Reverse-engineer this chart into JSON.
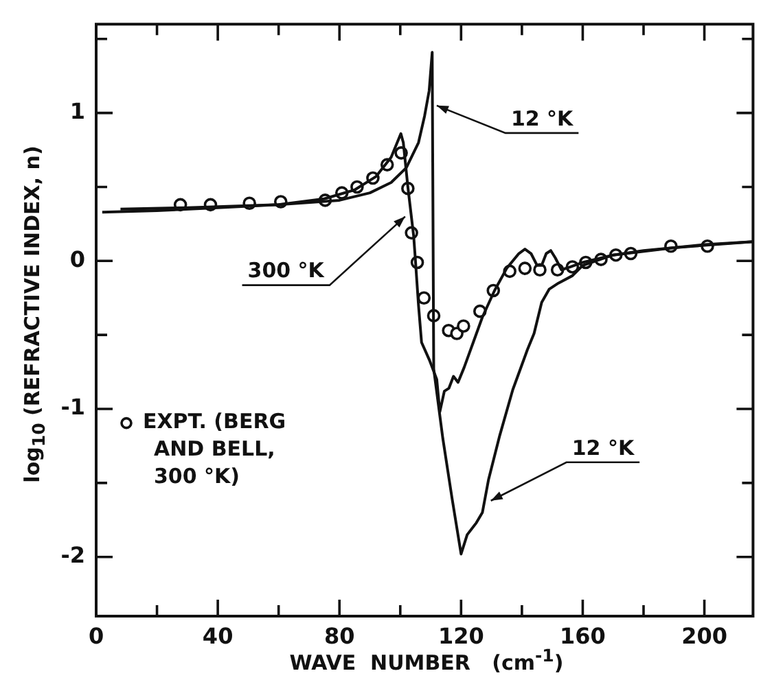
{
  "chart_data": {
    "type": "line",
    "xlabel": "WAVE  NUMBER   (cm$^{-1}$)",
    "ylabel": "log$_{10}$ (REFRACTIVE INDEX, n)",
    "xlim": [
      0,
      216
    ],
    "ylim": [
      -2.4,
      1.6
    ],
    "xticks": [
      0,
      {
        "value": 20,
        "label": null
      },
      40,
      {
        "value": 60,
        "label": null
      },
      80,
      {
        "value": 100,
        "label": null
      },
      120,
      {
        "value": 140,
        "label": null
      },
      160,
      {
        "value": 180,
        "label": null
      },
      200
    ],
    "yticks": [
      -2,
      {
        "value": -1.5,
        "label": null
      },
      -1,
      {
        "value": -0.5,
        "label": null
      },
      0,
      {
        "value": 0.5,
        "label": null
      },
      1,
      {
        "value": 1.5,
        "label": null
      }
    ],
    "legend": "left",
    "series": [
      {
        "color": "#111111",
        "x": [
          2,
          20,
          40,
          60,
          75,
          85,
          92,
          97,
          100.2,
          101,
          102.5,
          104.4,
          105,
          106,
          107,
          109.6,
          112,
          113,
          114.5,
          116,
          117.5,
          119,
          121,
          124,
          127,
          131,
          135,
          139,
          141,
          143,
          145,
          146.5,
          148,
          149.5,
          151,
          153,
          156,
          160,
          170,
          180,
          190,
          200,
          216
        ],
        "values": [
          0.33,
          0.34,
          0.36,
          0.38,
          0.42,
          0.48,
          0.57,
          0.7,
          0.86,
          0.8,
          0.5,
          0.17,
          0.0,
          -0.3,
          -0.55,
          -0.67,
          -0.8,
          -1.02,
          -0.88,
          -0.86,
          -0.78,
          -0.82,
          -0.72,
          -0.55,
          -0.38,
          -0.2,
          -0.05,
          0.05,
          0.08,
          0.05,
          -0.03,
          -0.03,
          0.05,
          0.07,
          0.02,
          -0.06,
          -0.04,
          -0.01,
          0.04,
          0.07,
          0.09,
          0.11,
          0.13
        ]
      },
      {
        "color": "#111111",
        "x": [
          8,
          30,
          60,
          80,
          90,
          97,
          102,
          106,
          108,
          109.5,
          110.5,
          111,
          114,
          117,
          120,
          122,
          125,
          127,
          129,
          132.7,
          137,
          141.8,
          144,
          146.5,
          149,
          152,
          156.6,
          160,
          170,
          190,
          216
        ],
        "values": [
          0.35,
          0.36,
          0.38,
          0.41,
          0.46,
          0.53,
          0.63,
          0.8,
          0.98,
          1.15,
          1.41,
          -0.73,
          -1.2,
          -1.6,
          -1.98,
          -1.85,
          -1.77,
          -1.7,
          -1.48,
          -1.18,
          -0.87,
          -0.6,
          -0.49,
          -0.28,
          -0.19,
          -0.15,
          -0.1,
          -0.03,
          0.04,
          0.09,
          0.13
        ]
      },
      {
        "type": "scatter",
        "marker": "circle",
        "name": "EXPT. (BERG AND BELL, 300 °K)",
        "color": "#111111",
        "x": [
          27.7,
          37.6,
          50.4,
          60.7,
          75.3,
          80.8,
          85.8,
          91,
          95.7,
          100.3,
          102.5,
          103.7,
          105.6,
          107.8,
          111,
          115.9,
          118.6,
          120.8,
          126.2,
          130.6,
          136,
          141,
          145.9,
          151.7,
          156.6,
          161,
          166,
          170.9,
          175.8,
          189,
          201
        ],
        "values": [
          0.38,
          0.38,
          0.39,
          0.4,
          0.41,
          0.46,
          0.5,
          0.56,
          0.65,
          0.73,
          0.49,
          0.19,
          -0.01,
          -0.25,
          -0.37,
          -0.47,
          -0.49,
          -0.44,
          -0.34,
          -0.2,
          -0.07,
          -0.05,
          -0.06,
          -0.06,
          -0.04,
          -0.01,
          0.01,
          0.04,
          0.05,
          0.1,
          0.1
        ]
      }
    ],
    "annotations": [
      {
        "text": "12 °K",
        "x": 112,
        "y": 1.05
      },
      {
        "text": "300 °K",
        "x": 101.6,
        "y": 0.3
      },
      {
        "text": "12 °K",
        "x": 129.8,
        "y": -1.62
      }
    ]
  }
}
